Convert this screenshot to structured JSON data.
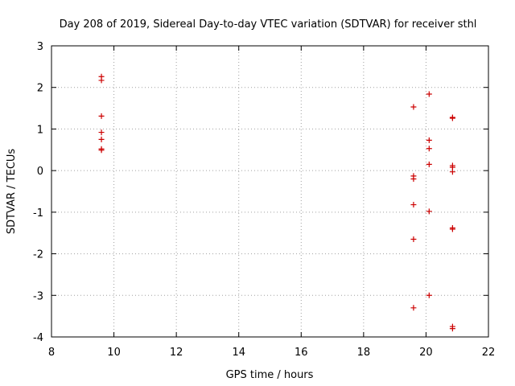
{
  "colors": {
    "point": "#cc0000",
    "grid": "#a0a0a0",
    "axis": "#000000"
  },
  "chart_data": {
    "type": "scatter",
    "title": "Day 208 of 2019, Sidereal Day-to-day VTEC variation (SDTVAR) for receiver sthl",
    "xlabel": "GPS time / hours",
    "ylabel": "SDTVAR / TECUs",
    "xlim": [
      8,
      22
    ],
    "ylim": [
      -4,
      3
    ],
    "xticks": [
      8,
      10,
      12,
      14,
      16,
      18,
      20,
      22
    ],
    "yticks": [
      -4,
      -3,
      -2,
      -1,
      0,
      1,
      2,
      3
    ],
    "grid": true,
    "marker": "plus",
    "series": [
      {
        "name": "SDTVAR",
        "points": [
          {
            "x": 9.6,
            "y": 2.26
          },
          {
            "x": 9.6,
            "y": 2.17
          },
          {
            "x": 9.6,
            "y": 1.31
          },
          {
            "x": 9.6,
            "y": 0.92
          },
          {
            "x": 9.6,
            "y": 0.75
          },
          {
            "x": 9.6,
            "y": 0.52
          },
          {
            "x": 9.6,
            "y": 0.49
          },
          {
            "x": 19.6,
            "y": 1.53
          },
          {
            "x": 19.6,
            "y": -0.13
          },
          {
            "x": 19.6,
            "y": -0.2
          },
          {
            "x": 19.6,
            "y": -0.82
          },
          {
            "x": 19.6,
            "y": -1.65
          },
          {
            "x": 19.6,
            "y": -3.3
          },
          {
            "x": 20.1,
            "y": 1.84
          },
          {
            "x": 20.1,
            "y": 0.73
          },
          {
            "x": 20.1,
            "y": 0.53
          },
          {
            "x": 20.1,
            "y": 0.15
          },
          {
            "x": 20.1,
            "y": -0.98
          },
          {
            "x": 20.1,
            "y": -3.0
          },
          {
            "x": 20.85,
            "y": 1.28
          },
          {
            "x": 20.85,
            "y": 1.26
          },
          {
            "x": 20.85,
            "y": 0.12
          },
          {
            "x": 20.85,
            "y": 0.08
          },
          {
            "x": 20.85,
            "y": -0.03
          },
          {
            "x": 20.85,
            "y": -1.38
          },
          {
            "x": 20.85,
            "y": -1.41
          },
          {
            "x": 20.85,
            "y": -3.75
          },
          {
            "x": 20.85,
            "y": -3.8
          }
        ]
      }
    ]
  }
}
